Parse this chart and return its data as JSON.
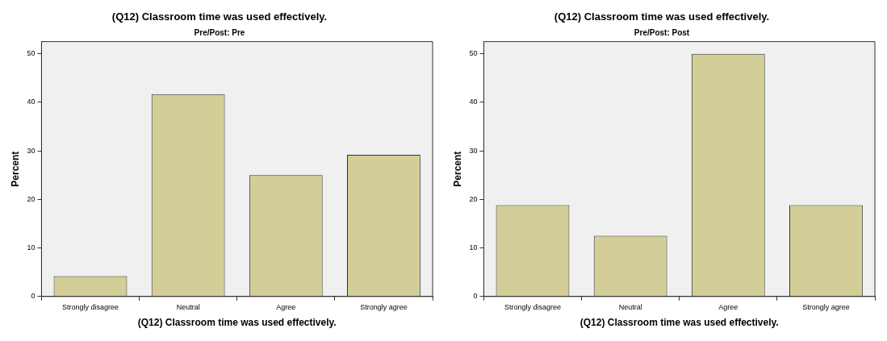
{
  "chart_data": [
    {
      "type": "bar",
      "title": "(Q12) Classroom time was used effectively.",
      "subtitle": "Pre/Post: Pre",
      "xlabel": "(Q12) Classroom time was used effectively.",
      "ylabel": "Percent",
      "categories": [
        "Strongly disagree",
        "Neutral",
        "Agree",
        "Strongly agree"
      ],
      "values": [
        4.2,
        41.7,
        25,
        29.2
      ],
      "color": "#d3ce97",
      "ylim": [
        0,
        52.5
      ],
      "yticks": [
        0,
        10,
        20,
        30,
        40,
        50
      ],
      "grid": false,
      "legend": false
    },
    {
      "type": "bar",
      "title": "(Q12) Classroom time was used effectively.",
      "subtitle": "Pre/Post: Post",
      "xlabel": "(Q12) Classroom time was used effectively.",
      "ylabel": "Percent",
      "categories": [
        "Strongly disagree",
        "Neutral",
        "Agree",
        "Strongly agree"
      ],
      "values": [
        18.8,
        12.5,
        50,
        18.8
      ],
      "color": "#d3ce97",
      "ylim": [
        0,
        52.5
      ],
      "yticks": [
        0,
        10,
        20,
        30,
        40,
        50
      ],
      "grid": false,
      "legend": false
    }
  ]
}
